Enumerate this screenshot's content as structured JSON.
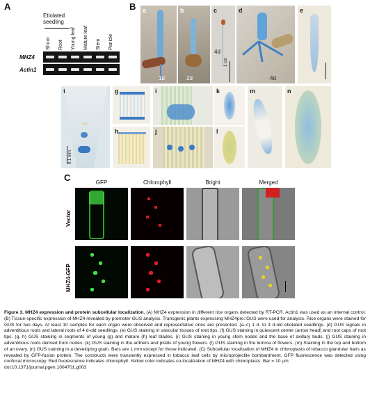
{
  "panel_a": {
    "label": "A",
    "header_group": "Etiolated seedling",
    "columns": [
      "Shoot",
      "Root",
      "Young leaf",
      "Mature leaf",
      "Stem",
      "Panicle"
    ],
    "rows": [
      "MHZ4",
      "Actin1"
    ]
  },
  "panel_b": {
    "label": "B",
    "subpanels": [
      "a",
      "b",
      "c",
      "d",
      "e",
      "f",
      "g",
      "h",
      "i",
      "j",
      "k",
      "l",
      "m",
      "n"
    ],
    "day_labels": {
      "a": "1d",
      "b": "2d",
      "c": "4d",
      "d": "4d"
    },
    "scale_c": "1 cm",
    "scale_f": "0.1 mm"
  },
  "panel_c": {
    "label": "C",
    "columns": [
      "GFP",
      "Chlorophyll",
      "Bright",
      "Merged"
    ],
    "rows": [
      "Vector",
      "MHZ4-GFP"
    ]
  },
  "caption": {
    "title": "Figure 3. MHZ4 expression and protein subcellular localization.",
    "body": "(A) MHZ4 expression in different rice organs detected by RT-PCR. Actin1 was used as an internal control. (B) Tissue-specific expression of MHZ4 revealed by promoter-GUS analysis. Transgenic plants expressing MHZ4pro::GUS were used for analysis. Rice organs were stained for GUS for two days. At least 10 samples for each organ were observed and representative ones are presented. (a–c) 1 d- to 4 d-old etiolated seedlings. (d) GUS signals in adventitious roots and lateral roots of 4 d-old seedlings. (e) GUS staining in vascular tissues of root tips. (f) GUS staining in quiescent center (arrow head) and root caps of root tips. (g, h) GUS staining in segments of young (g) and mature (h) leaf blades. (i) GUS staining in young stem nodes and the base of axillary buds. (j) GUS staining in adventitious roots derived from nodes. (k) GUS staining in the anthers and pistils of young flowers. (l) GUS staining in the lemma of flowers. (m) Staining in the top and bottom of an ovary. (n) GUS staining in a developing grain. Bars are 1 mm except for those indicated. (C) Subcellular localization of MHZ4 in chloroplasts of tobacco glandular hairs as revealed by GFP-fusion protein. The constructs were transiently expressed in tobacco leaf cells by microprojectile bombardment. GFP fluorescence was detected using confocal microscopy. Red fluorescence indicates chlorophyll. Yellow color indicates co-localization of MHZ4 with chloroplasts. Bar = 10 μm.",
    "doi": "doi:10.1371/journal.pgen.1004701.g003"
  }
}
